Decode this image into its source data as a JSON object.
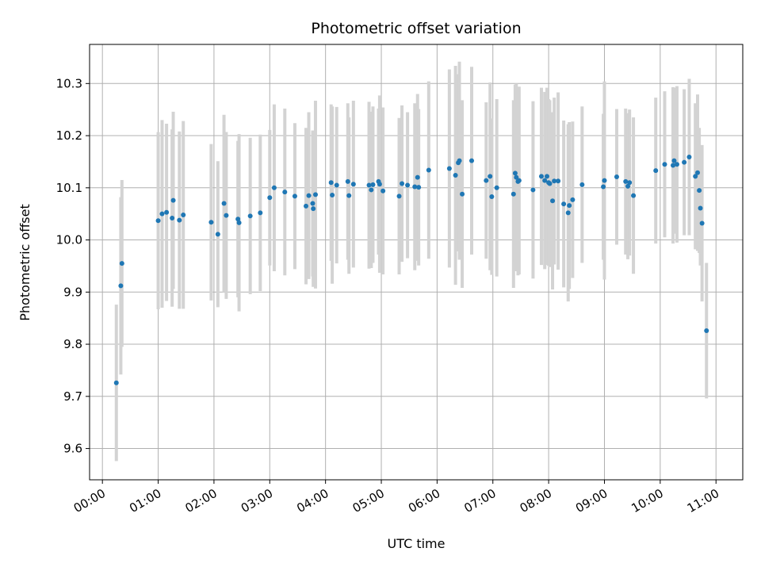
{
  "chart_data": {
    "type": "scatter",
    "title": "Photometric offset variation",
    "xlabel": "UTC time",
    "ylabel": "Photometric offset",
    "x_ticks": [
      "00:00",
      "01:00",
      "02:00",
      "03:00",
      "04:00",
      "05:00",
      "06:00",
      "07:00",
      "08:00",
      "09:00",
      "10:00",
      "11:00"
    ],
    "y_ticks": [
      "9.6",
      "9.7",
      "9.8",
      "9.9",
      "10.0",
      "10.1",
      "10.2",
      "10.3"
    ],
    "xlim_hours": [
      -0.23,
      11.48
    ],
    "ylim": [
      9.54,
      10.375
    ],
    "grid": true,
    "colors": {
      "point": "#1f77b4",
      "errorbar": "#d3d3d3",
      "grid": "#b0b0b0"
    },
    "series": [
      {
        "x_hours": [
          0.25,
          0.33,
          0.35,
          1.0,
          1.07,
          1.15,
          1.25,
          1.27,
          1.38,
          1.45,
          1.95,
          2.07,
          2.18,
          2.22,
          2.43,
          2.45,
          2.65,
          2.83,
          3.0,
          3.08,
          3.27,
          3.45,
          3.65,
          3.7,
          3.77,
          3.78,
          3.82,
          4.1,
          4.12,
          4.2,
          4.4,
          4.42,
          4.5,
          4.78,
          4.82,
          4.85,
          4.95,
          4.97,
          5.03,
          5.32,
          5.37,
          5.47,
          5.6,
          5.65,
          5.67,
          5.85,
          6.22,
          6.33,
          6.38,
          6.4,
          6.45,
          6.62,
          6.88,
          6.95,
          6.98,
          7.07,
          7.37,
          7.4,
          7.42,
          7.45,
          7.47,
          7.72,
          7.87,
          7.93,
          7.97,
          8.0,
          8.02,
          8.07,
          8.1,
          8.17,
          8.27,
          8.35,
          8.37,
          8.43,
          8.6,
          8.98,
          9.0,
          9.22,
          9.38,
          9.42,
          9.45,
          9.52,
          9.92,
          10.08,
          10.23,
          10.25,
          10.3,
          10.43,
          10.52,
          10.63,
          10.67,
          10.7,
          10.72,
          10.75,
          10.83
        ],
        "values": [
          9.726,
          9.912,
          9.955,
          10.037,
          10.05,
          10.053,
          10.042,
          10.076,
          10.038,
          10.048,
          10.034,
          10.011,
          10.07,
          10.047,
          10.04,
          10.033,
          10.046,
          10.052,
          10.081,
          10.1,
          10.092,
          10.084,
          10.065,
          10.085,
          10.07,
          10.06,
          10.087,
          10.11,
          10.086,
          10.105,
          10.112,
          10.085,
          10.107,
          10.105,
          10.096,
          10.106,
          10.112,
          10.107,
          10.094,
          10.084,
          10.108,
          10.105,
          10.102,
          10.12,
          10.101,
          10.134,
          10.137,
          10.124,
          10.148,
          10.152,
          10.088,
          10.152,
          10.114,
          10.122,
          10.083,
          10.1,
          10.088,
          10.128,
          10.12,
          10.112,
          10.114,
          10.096,
          10.122,
          10.114,
          10.122,
          10.11,
          10.108,
          10.075,
          10.113,
          10.113,
          10.069,
          10.052,
          10.066,
          10.077,
          10.106,
          10.102,
          10.114,
          10.121,
          10.112,
          10.103,
          10.11,
          10.085,
          10.133,
          10.145,
          10.143,
          10.152,
          10.145,
          10.149,
          10.159,
          10.122,
          10.129,
          10.095,
          10.061,
          10.032,
          9.826
        ],
        "errors": [
          0.15,
          0.17,
          0.16,
          0.17,
          0.18,
          0.17,
          0.17,
          0.17,
          0.17,
          0.18,
          0.15,
          0.14,
          0.17,
          0.16,
          0.15,
          0.17,
          0.15,
          0.15,
          0.13,
          0.16,
          0.16,
          0.14,
          0.15,
          0.16,
          0.14,
          0.15,
          0.18,
          0.15,
          0.17,
          0.15,
          0.15,
          0.15,
          0.16,
          0.16,
          0.15,
          0.15,
          0.14,
          0.17,
          0.16,
          0.15,
          0.15,
          0.14,
          0.16,
          0.16,
          0.15,
          0.17,
          0.19,
          0.21,
          0.17,
          0.19,
          0.18,
          0.18,
          0.15,
          0.18,
          0.15,
          0.17,
          0.18,
          0.17,
          0.18,
          0.18,
          0.18,
          0.17,
          0.17,
          0.17,
          0.17,
          0.16,
          0.16,
          0.17,
          0.16,
          0.17,
          0.16,
          0.17,
          0.16,
          0.15,
          0.15,
          0.14,
          0.19,
          0.13,
          0.14,
          0.14,
          0.14,
          0.15,
          0.14,
          0.14,
          0.15,
          0.14,
          0.15,
          0.14,
          0.15,
          0.14,
          0.15,
          0.12,
          0.11,
          0.15,
          0.13
        ]
      }
    ]
  }
}
